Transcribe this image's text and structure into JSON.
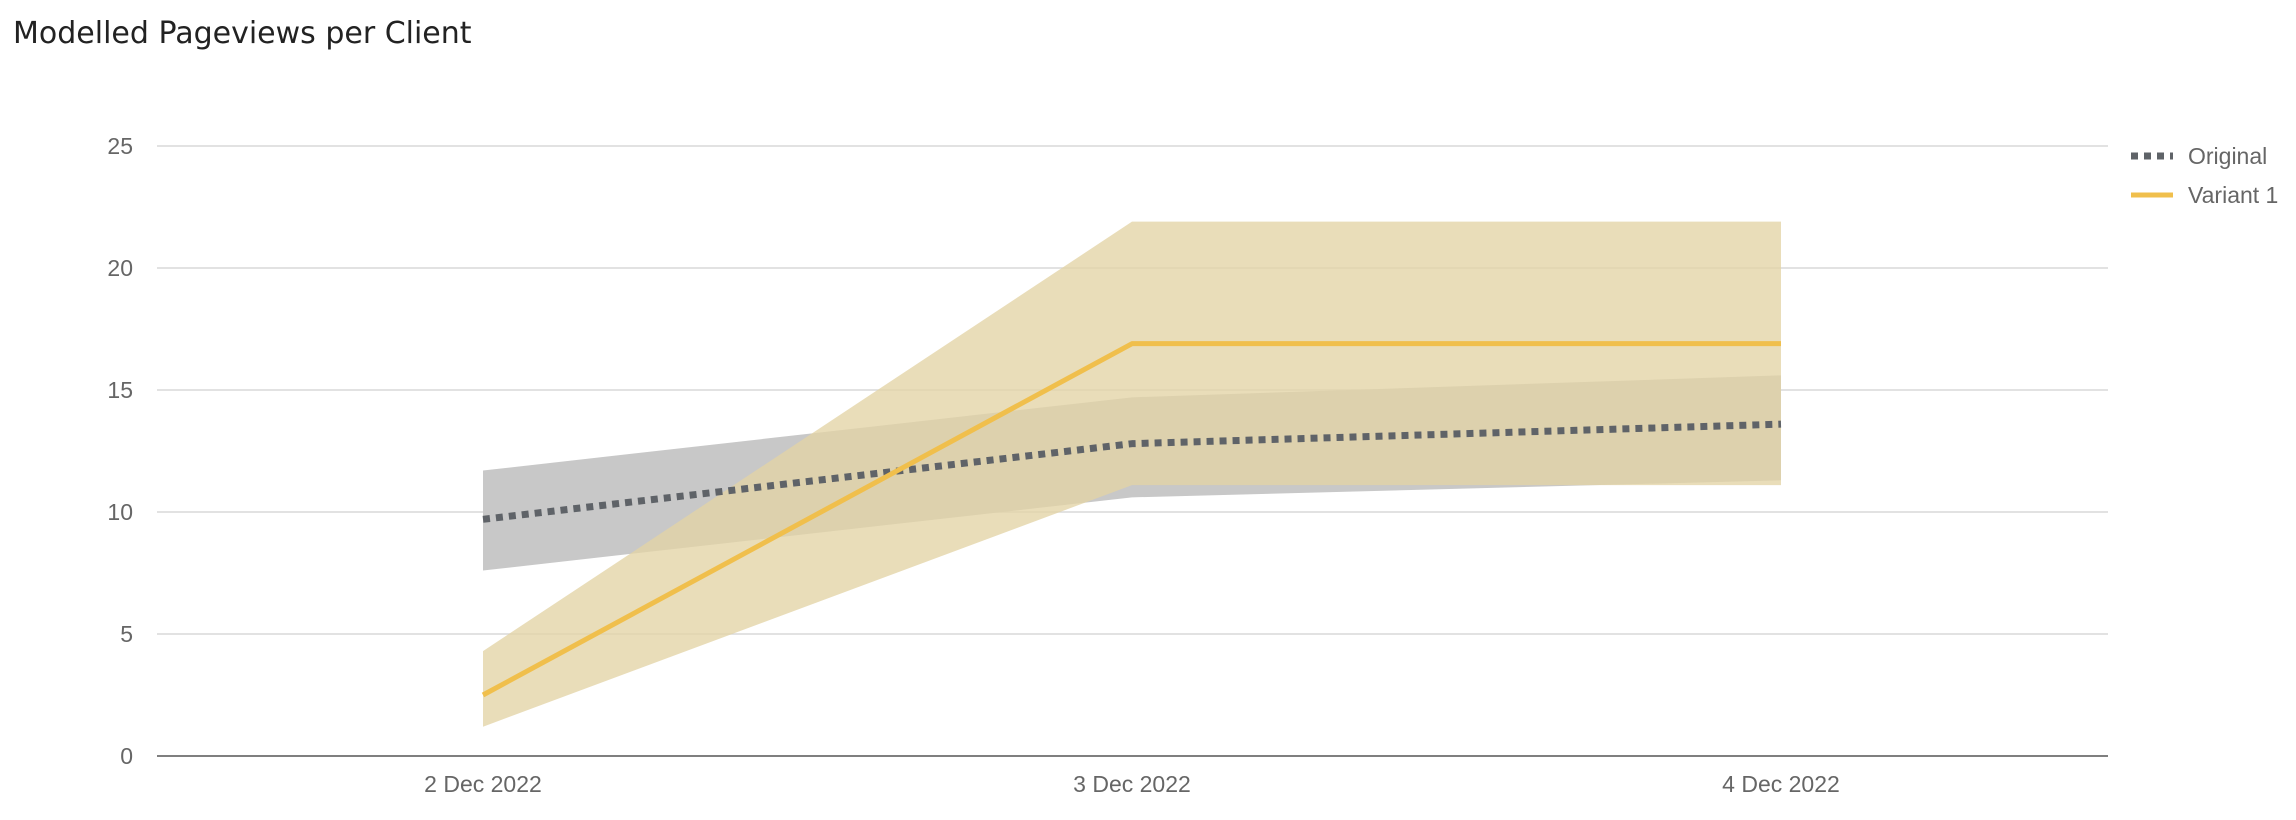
{
  "chart_data": {
    "type": "line",
    "title": "Modelled Pageviews per Client",
    "xlabel": "",
    "ylabel": "",
    "x": [
      "2 Dec 2022",
      "3 Dec 2022",
      "4 Dec 2022"
    ],
    "ylim": [
      0,
      25
    ],
    "yticks": [
      0,
      5,
      10,
      15,
      20,
      25
    ],
    "grid": true,
    "legend_position": "right",
    "series": [
      {
        "name": "Original",
        "style": "dotted",
        "color": "#5f6368",
        "band_color": "#c8c8c8",
        "values": [
          9.7,
          12.8,
          13.6
        ],
        "lower": [
          7.6,
          10.6,
          11.3
        ],
        "upper": [
          11.7,
          14.7,
          15.6
        ]
      },
      {
        "name": "Variant 1",
        "style": "solid",
        "color": "#f0bf4c",
        "band_color": "#e3d3a5",
        "values": [
          2.5,
          16.9,
          16.9
        ],
        "lower": [
          1.2,
          11.1,
          11.1
        ],
        "upper": [
          4.3,
          21.9,
          21.9
        ]
      }
    ]
  }
}
